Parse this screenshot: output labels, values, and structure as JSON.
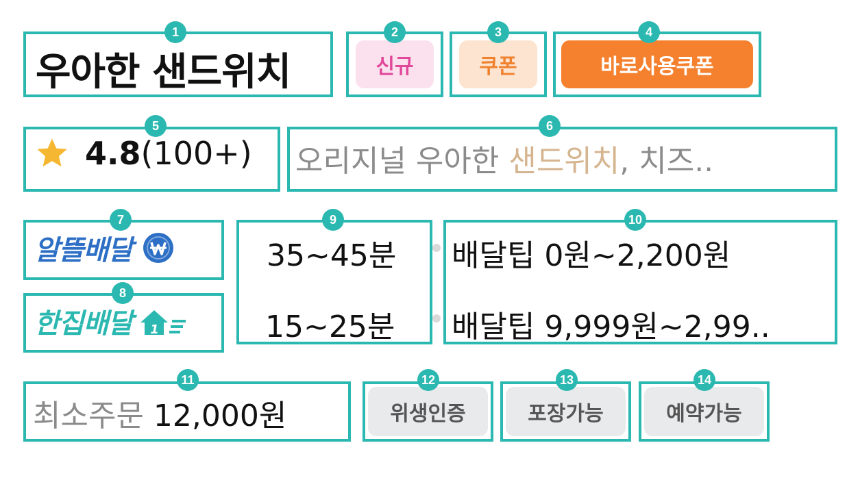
{
  "shop": {
    "name": "우아한 샌드위치",
    "badges": {
      "new": "신규",
      "coupon": "쿠폰",
      "instant_coupon": "바로사용쿠폰"
    }
  },
  "rating": {
    "score": "4.8",
    "count": "(100+)"
  },
  "description": {
    "prefix": "오리지널 우아한 ",
    "highlight": "샌드위치",
    "suffix": ", 치즈.."
  },
  "delivery": {
    "options": [
      {
        "type": "알뜰배달",
        "time": "35~45분",
        "tip": "배달팁 0원~2,200원"
      },
      {
        "type": "한집배달",
        "time": "15~25분",
        "tip": "배달팁 9,999원~2,99.."
      }
    ]
  },
  "min_order": {
    "label": "최소주문",
    "amount": "12,000원"
  },
  "tags": [
    "위생인증",
    "포장가능",
    "예약가능"
  ],
  "markers": [
    "1",
    "2",
    "3",
    "4",
    "5",
    "6",
    "7",
    "8",
    "9",
    "10",
    "11",
    "12",
    "13",
    "14"
  ],
  "colors": {
    "annotation": "#2bb8b0",
    "new_badge_bg": "#fbe1ee",
    "new_badge_text": "#e0489a",
    "coupon_bg": "#fde4d0",
    "coupon_text": "#f0822e",
    "instant_coupon_bg": "#f5812e",
    "star": "#f5b731",
    "description_highlight": "#d5b58f",
    "budget_delivery": "#2c6fc5",
    "single_delivery": "#2bb8b0",
    "tag_bg": "#e9eaec"
  }
}
